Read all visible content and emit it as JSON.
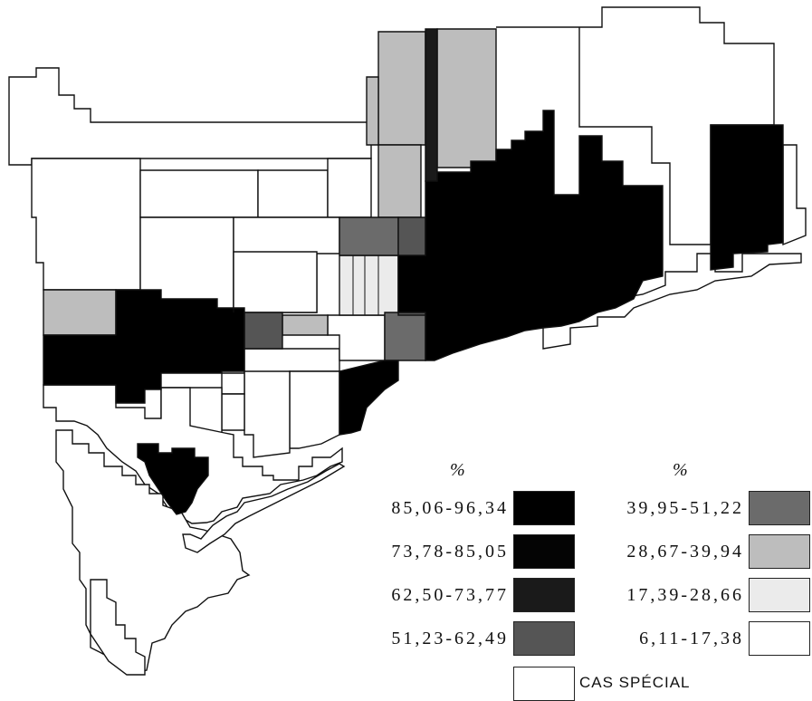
{
  "colors": {
    "c1": "#000000",
    "c2": "#040404",
    "c3": "#1a1a1a",
    "c4": "#555555",
    "c5": "#6b6b6b",
    "c6": "#bdbdbd",
    "c7": "#ebebeb",
    "c8": "#ffffff",
    "special": "#ffffff",
    "border": "#111111"
  },
  "legend": {
    "left_title": "%",
    "right_title": "%",
    "left_classes": [
      {
        "lo": "85,06",
        "hi": "96,34",
        "color_key": "c1"
      },
      {
        "lo": "73,78",
        "hi": "85,05",
        "color_key": "c2"
      },
      {
        "lo": "62,50",
        "hi": "73,77",
        "color_key": "c3"
      },
      {
        "lo": "51,23",
        "hi": "62,49",
        "color_key": "c4"
      }
    ],
    "right_classes": [
      {
        "lo": "39,95",
        "hi": "51,22",
        "color_key": "c5"
      },
      {
        "lo": "28,67",
        "hi": "39,94",
        "color_key": "c6"
      },
      {
        "lo": "17,39",
        "hi": "28,66",
        "color_key": "c7"
      },
      {
        "lo": "6,11",
        "hi": "17,38",
        "color_key": "c8"
      }
    ],
    "special_label": "CAS SPÉCIAL"
  }
}
